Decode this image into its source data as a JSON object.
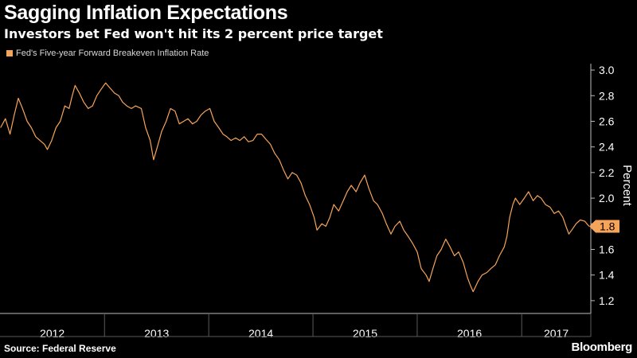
{
  "header": {
    "title": "Sagging Inflation Expectations",
    "subtitle": "Investors bet Fed won't hit its 2 percent price target"
  },
  "legend": {
    "label": "Fed's Five-year Forward Breakeven Inflation Rate"
  },
  "footer": {
    "source": "Source: Federal Reserve",
    "brand": "Bloomberg"
  },
  "colors": {
    "background": "#000000",
    "line": "#f6a45a",
    "grid": "#3a3a3a",
    "text": "#ffffff"
  },
  "chart_data": {
    "type": "line",
    "title": "Sagging Inflation Expectations",
    "subtitle": "Investors bet Fed won't hit its 2 percent price target",
    "xlabel": "",
    "ylabel": "Percent",
    "ylim": [
      1.1,
      3.05
    ],
    "yticks": [
      1.2,
      1.4,
      1.6,
      1.8,
      2.0,
      2.2,
      2.4,
      2.6,
      2.8,
      3.0
    ],
    "ytick_labels": [
      "1.2",
      "1.4",
      "1.6",
      "1.8",
      "2.0",
      "2.2",
      "2.4",
      "2.6",
      "2.8",
      "3.0"
    ],
    "xlim": [
      "2012-01-01",
      "2017-08-31"
    ],
    "x_year_labels": [
      "2012",
      "2013",
      "2014",
      "2015",
      "2016",
      "2017"
    ],
    "grid": false,
    "legend_position": "top-left",
    "last_value_label": "1.8",
    "series": [
      {
        "name": "Fed's Five-year Forward Breakeven Inflation Rate",
        "color": "#f6a45a",
        "points": [
          [
            "2012-01-03",
            2.55
          ],
          [
            "2012-01-20",
            2.62
          ],
          [
            "2012-02-05",
            2.5
          ],
          [
            "2012-02-20",
            2.65
          ],
          [
            "2012-03-05",
            2.78
          ],
          [
            "2012-03-20",
            2.7
          ],
          [
            "2012-04-05",
            2.6
          ],
          [
            "2012-04-20",
            2.55
          ],
          [
            "2012-05-05",
            2.48
          ],
          [
            "2012-05-20",
            2.45
          ],
          [
            "2012-06-05",
            2.42
          ],
          [
            "2012-06-15",
            2.38
          ],
          [
            "2012-06-30",
            2.45
          ],
          [
            "2012-07-15",
            2.55
          ],
          [
            "2012-07-30",
            2.6
          ],
          [
            "2012-08-15",
            2.72
          ],
          [
            "2012-08-30",
            2.7
          ],
          [
            "2012-09-10",
            2.8
          ],
          [
            "2012-09-20",
            2.88
          ],
          [
            "2012-10-05",
            2.82
          ],
          [
            "2012-10-20",
            2.75
          ],
          [
            "2012-11-05",
            2.7
          ],
          [
            "2012-11-20",
            2.72
          ],
          [
            "2012-12-05",
            2.8
          ],
          [
            "2012-12-20",
            2.85
          ],
          [
            "2013-01-05",
            2.9
          ],
          [
            "2013-01-20",
            2.86
          ],
          [
            "2013-02-05",
            2.82
          ],
          [
            "2013-02-20",
            2.8
          ],
          [
            "2013-03-05",
            2.75
          ],
          [
            "2013-03-20",
            2.72
          ],
          [
            "2013-04-05",
            2.7
          ],
          [
            "2013-04-20",
            2.72
          ],
          [
            "2013-05-10",
            2.7
          ],
          [
            "2013-05-25",
            2.55
          ],
          [
            "2013-06-10",
            2.45
          ],
          [
            "2013-06-22",
            2.3
          ],
          [
            "2013-07-05",
            2.4
          ],
          [
            "2013-07-20",
            2.52
          ],
          [
            "2013-08-05",
            2.6
          ],
          [
            "2013-08-20",
            2.7
          ],
          [
            "2013-09-05",
            2.68
          ],
          [
            "2013-09-20",
            2.58
          ],
          [
            "2013-10-05",
            2.6
          ],
          [
            "2013-10-20",
            2.62
          ],
          [
            "2013-11-05",
            2.58
          ],
          [
            "2013-11-20",
            2.6
          ],
          [
            "2013-12-05",
            2.65
          ],
          [
            "2013-12-20",
            2.68
          ],
          [
            "2014-01-05",
            2.7
          ],
          [
            "2014-01-20",
            2.6
          ],
          [
            "2014-02-05",
            2.55
          ],
          [
            "2014-02-20",
            2.5
          ],
          [
            "2014-03-05",
            2.48
          ],
          [
            "2014-03-20",
            2.45
          ],
          [
            "2014-04-05",
            2.47
          ],
          [
            "2014-04-20",
            2.45
          ],
          [
            "2014-05-05",
            2.48
          ],
          [
            "2014-05-20",
            2.44
          ],
          [
            "2014-06-05",
            2.45
          ],
          [
            "2014-06-20",
            2.5
          ],
          [
            "2014-07-05",
            2.5
          ],
          [
            "2014-07-20",
            2.46
          ],
          [
            "2014-08-05",
            2.42
          ],
          [
            "2014-08-20",
            2.35
          ],
          [
            "2014-09-05",
            2.3
          ],
          [
            "2014-09-20",
            2.22
          ],
          [
            "2014-10-05",
            2.15
          ],
          [
            "2014-10-20",
            2.2
          ],
          [
            "2014-11-05",
            2.18
          ],
          [
            "2014-11-20",
            2.12
          ],
          [
            "2014-12-05",
            2.02
          ],
          [
            "2014-12-20",
            1.95
          ],
          [
            "2015-01-05",
            1.85
          ],
          [
            "2015-01-15",
            1.75
          ],
          [
            "2015-02-01",
            1.8
          ],
          [
            "2015-02-15",
            1.78
          ],
          [
            "2015-03-01",
            1.85
          ],
          [
            "2015-03-15",
            1.95
          ],
          [
            "2015-04-01",
            1.9
          ],
          [
            "2015-04-15",
            1.97
          ],
          [
            "2015-05-01",
            2.05
          ],
          [
            "2015-05-15",
            2.1
          ],
          [
            "2015-06-01",
            2.05
          ],
          [
            "2015-06-15",
            2.12
          ],
          [
            "2015-07-01",
            2.18
          ],
          [
            "2015-07-15",
            2.08
          ],
          [
            "2015-08-01",
            1.98
          ],
          [
            "2015-08-15",
            1.95
          ],
          [
            "2015-09-01",
            1.88
          ],
          [
            "2015-09-15",
            1.8
          ],
          [
            "2015-10-01",
            1.72
          ],
          [
            "2015-10-15",
            1.78
          ],
          [
            "2015-11-01",
            1.82
          ],
          [
            "2015-11-15",
            1.75
          ],
          [
            "2015-12-01",
            1.7
          ],
          [
            "2015-12-15",
            1.65
          ],
          [
            "2016-01-01",
            1.58
          ],
          [
            "2016-01-15",
            1.45
          ],
          [
            "2016-02-01",
            1.4
          ],
          [
            "2016-02-12",
            1.35
          ],
          [
            "2016-02-25",
            1.45
          ],
          [
            "2016-03-10",
            1.55
          ],
          [
            "2016-03-25",
            1.6
          ],
          [
            "2016-04-10",
            1.68
          ],
          [
            "2016-04-25",
            1.62
          ],
          [
            "2016-05-10",
            1.55
          ],
          [
            "2016-05-25",
            1.58
          ],
          [
            "2016-06-10",
            1.5
          ],
          [
            "2016-06-25",
            1.38
          ],
          [
            "2016-07-05",
            1.32
          ],
          [
            "2016-07-15",
            1.27
          ],
          [
            "2016-08-01",
            1.35
          ],
          [
            "2016-08-15",
            1.4
          ],
          [
            "2016-09-01",
            1.42
          ],
          [
            "2016-09-15",
            1.45
          ],
          [
            "2016-10-01",
            1.48
          ],
          [
            "2016-10-15",
            1.55
          ],
          [
            "2016-11-01",
            1.62
          ],
          [
            "2016-11-10",
            1.7
          ],
          [
            "2016-11-20",
            1.85
          ],
          [
            "2016-12-01",
            1.95
          ],
          [
            "2016-12-10",
            2.0
          ],
          [
            "2016-12-25",
            1.95
          ],
          [
            "2017-01-10",
            2.0
          ],
          [
            "2017-01-25",
            2.05
          ],
          [
            "2017-02-10",
            1.98
          ],
          [
            "2017-02-25",
            2.02
          ],
          [
            "2017-03-10",
            2.0
          ],
          [
            "2017-03-25",
            1.95
          ],
          [
            "2017-04-10",
            1.93
          ],
          [
            "2017-04-25",
            1.88
          ],
          [
            "2017-05-10",
            1.9
          ],
          [
            "2017-05-25",
            1.85
          ],
          [
            "2017-06-05",
            1.78
          ],
          [
            "2017-06-15",
            1.72
          ],
          [
            "2017-06-25",
            1.75
          ],
          [
            "2017-07-10",
            1.8
          ],
          [
            "2017-07-25",
            1.83
          ],
          [
            "2017-08-10",
            1.82
          ],
          [
            "2017-08-25",
            1.78
          ]
        ]
      }
    ]
  }
}
